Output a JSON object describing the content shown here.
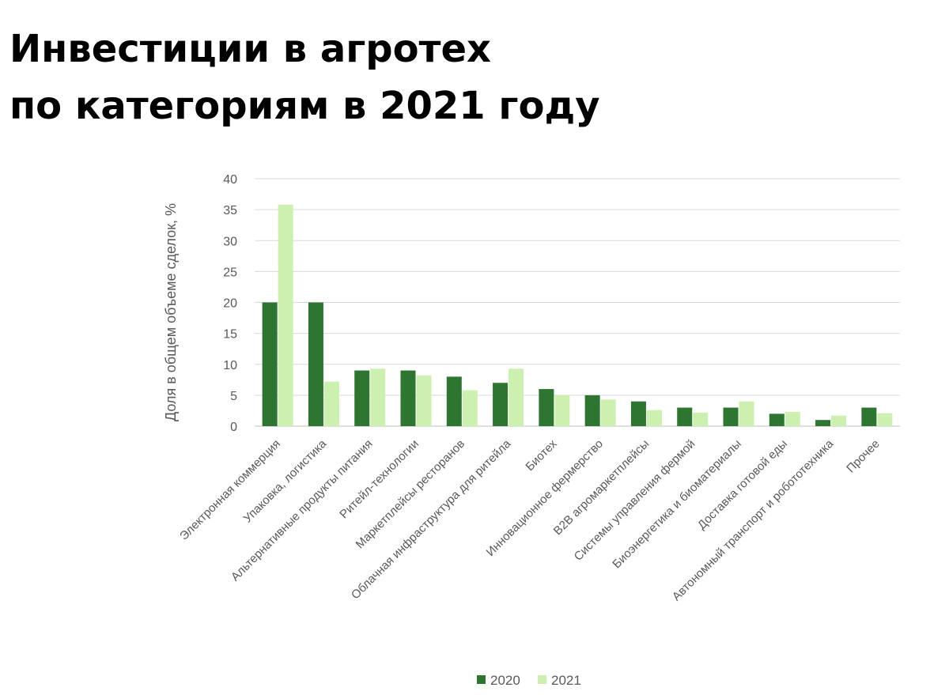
{
  "title": {
    "line1": "Инвестиции в агротех",
    "line2": "по категориям в 2021 году"
  },
  "chart_data": {
    "type": "bar",
    "ylabel": "Доля в общем объеме сделок, %",
    "ylim": [
      0,
      40
    ],
    "yticks": [
      0,
      5,
      10,
      15,
      20,
      25,
      30,
      35,
      40
    ],
    "grid": true,
    "legend_position": "bottom",
    "categories": [
      "Электронная коммерция",
      "Упаковка, логистика",
      "Альтернативные продукты питания",
      "Ритейл-технологии",
      "Маркетплейсы ресторанов",
      "Облачная инфраструктура для ритейла",
      "Биотех",
      "Инновационное фермерство",
      "B2B агромаркетплейсы",
      "Системы управления фермой",
      "Биоэнергетика и биоматериалы",
      "Доставка готовой еды",
      "Автономный транспорт и робототехника",
      "Прочее"
    ],
    "series": [
      {
        "name": "2020",
        "color": "#2e7532",
        "values": [
          20,
          20,
          9,
          9,
          8,
          7,
          6,
          5,
          4,
          3,
          3,
          2,
          1,
          3
        ]
      },
      {
        "name": "2021",
        "color": "#ccf0b0",
        "values": [
          35.8,
          7.2,
          9.3,
          8.2,
          5.8,
          9.3,
          5.0,
          4.3,
          2.6,
          2.2,
          4.0,
          2.3,
          1.7,
          2.1
        ]
      }
    ]
  }
}
